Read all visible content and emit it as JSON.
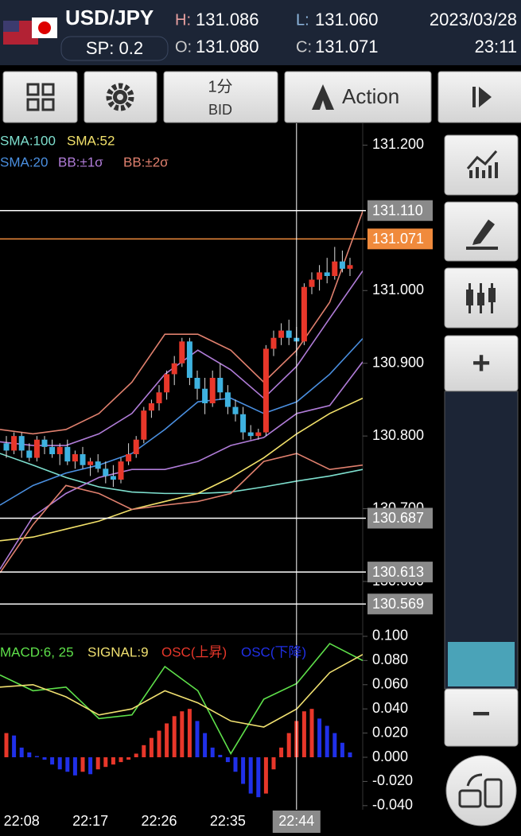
{
  "header": {
    "pair": "USD/JPY",
    "spread": "SP: 0.2",
    "high_label": "H:",
    "high": "131.086",
    "low_label": "L:",
    "low": "131.060",
    "open_label": "O:",
    "open": "131.080",
    "close_label": "C:",
    "close": "131.071",
    "date": "2023/03/28",
    "time": "23:11"
  },
  "toolbar": {
    "timeframe": "1分",
    "price_type": "BID",
    "action": "Action"
  },
  "sidebar": {
    "zoom_in": "+",
    "zoom_out": "−"
  },
  "chart_data": [
    {
      "type": "candlestick",
      "ylim": [
        130.53,
        131.23
      ],
      "yticks": [
        {
          "value": 131.2,
          "label": "131.200"
        },
        {
          "value": 131.0,
          "label": "131.000"
        },
        {
          "value": 130.9,
          "label": "130.900"
        },
        {
          "value": 130.8,
          "label": "130.800"
        },
        {
          "value": 130.7,
          "label": "130.700"
        },
        {
          "value": 130.6,
          "label": "130.600"
        }
      ],
      "x_labels": [
        "22:08",
        "22:17",
        "22:26",
        "22:35",
        "22:44"
      ],
      "up_color": "#e8372a",
      "down_color": "#3eb2e0",
      "candles": [
        [
          130.79,
          130.8,
          130.77,
          130.78
        ],
        [
          130.78,
          130.805,
          130.775,
          130.8
        ],
        [
          130.8,
          130.805,
          130.77,
          130.78
        ],
        [
          130.78,
          130.79,
          130.765,
          130.77
        ],
        [
          130.77,
          130.8,
          130.765,
          130.795
        ],
        [
          130.795,
          130.8,
          130.775,
          130.785
        ],
        [
          130.785,
          130.795,
          130.77,
          130.775
        ],
        [
          130.775,
          130.79,
          130.76,
          130.785
        ],
        [
          130.785,
          130.795,
          130.76,
          130.765
        ],
        [
          130.765,
          130.78,
          130.755,
          130.775
        ],
        [
          130.775,
          130.785,
          130.755,
          130.76
        ],
        [
          130.76,
          130.77,
          130.745,
          130.765
        ],
        [
          130.765,
          130.775,
          130.75,
          130.755
        ],
        [
          130.755,
          130.765,
          130.735,
          130.745
        ],
        [
          130.745,
          130.76,
          130.73,
          130.74
        ],
        [
          130.74,
          130.77,
          130.735,
          130.765
        ],
        [
          130.765,
          130.79,
          130.76,
          130.775
        ],
        [
          130.775,
          130.8,
          130.77,
          130.795
        ],
        [
          130.795,
          130.84,
          130.79,
          130.835
        ],
        [
          130.835,
          130.85,
          130.825,
          130.845
        ],
        [
          130.845,
          130.87,
          130.835,
          130.86
        ],
        [
          130.86,
          130.89,
          130.85,
          130.885
        ],
        [
          130.885,
          130.91,
          130.87,
          130.9
        ],
        [
          130.9,
          130.935,
          130.895,
          130.93
        ],
        [
          130.93,
          130.935,
          130.87,
          130.88
        ],
        [
          130.88,
          130.89,
          130.85,
          130.865
        ],
        [
          130.865,
          130.88,
          130.83,
          130.845
        ],
        [
          130.845,
          130.89,
          130.84,
          130.88
        ],
        [
          130.88,
          130.9,
          130.85,
          130.86
        ],
        [
          130.86,
          130.87,
          130.83,
          130.84
        ],
        [
          130.84,
          130.85,
          130.82,
          130.83
        ],
        [
          130.83,
          130.84,
          130.795,
          130.805
        ],
        [
          130.805,
          130.815,
          130.795,
          130.8
        ],
        [
          130.8,
          130.81,
          130.795,
          130.805
        ],
        [
          130.805,
          130.925,
          130.8,
          130.92
        ],
        [
          130.92,
          130.945,
          130.91,
          130.935
        ],
        [
          130.935,
          130.955,
          130.925,
          130.945
        ],
        [
          130.945,
          130.96,
          130.925,
          130.935
        ],
        [
          130.935,
          130.95,
          130.91,
          130.93
        ],
        [
          130.93,
          131.01,
          130.925,
          131.005
        ],
        [
          131.005,
          131.025,
          130.995,
          131.015
        ],
        [
          131.015,
          131.035,
          131.0,
          131.025
        ],
        [
          131.025,
          131.045,
          131.01,
          131.02
        ],
        [
          131.02,
          131.06,
          131.015,
          131.04
        ],
        [
          131.04,
          131.055,
          131.025,
          131.03
        ],
        [
          131.03,
          131.045,
          131.02,
          131.035
        ]
      ],
      "indicators": [
        {
          "name": "SMA:100",
          "color": "#7ee0cf",
          "values": [
            130.776,
            130.76,
            130.743,
            130.73,
            130.723,
            130.721,
            130.721,
            130.723,
            130.73,
            130.738,
            130.745,
            130.754
          ]
        },
        {
          "name": "SMA:52",
          "color": "#f2e16a",
          "values": [
            130.656,
            130.661,
            130.672,
            130.683,
            130.699,
            130.71,
            130.721,
            130.743,
            130.77,
            130.803,
            130.831,
            130.852
          ]
        },
        {
          "name": "SMA:20",
          "color": "#4a8fe0",
          "values": [
            130.705,
            130.732,
            130.749,
            130.76,
            130.776,
            130.809,
            130.847,
            130.852,
            130.831,
            130.847,
            130.885,
            130.934
          ]
        },
        {
          "name": "BB:±1σ",
          "color": "#b07cd8",
          "values": [
            130.792,
            130.787,
            130.787,
            130.803,
            130.831,
            130.885,
            130.918,
            130.891,
            130.852,
            130.896,
            130.962,
            131.027
          ],
          "lower": [
            130.617,
            130.689,
            130.721,
            130.743,
            130.754,
            130.754,
            130.765,
            130.787,
            130.798,
            130.831,
            130.842,
            130.902
          ]
        },
        {
          "name": "BB:±2σ",
          "color": "#e0806e",
          "values": [
            130.809,
            130.803,
            130.809,
            130.831,
            130.874,
            130.94,
            130.94,
            130.918,
            130.874,
            130.918,
            130.984,
            131.109
          ],
          "lower": [
            130.612,
            130.678,
            130.732,
            130.721,
            130.699,
            130.705,
            130.71,
            130.721,
            130.765,
            130.776,
            130.754,
            130.76
          ]
        }
      ],
      "levels": [
        {
          "value": 131.11,
          "label": "131.110",
          "color": "#ffffff"
        },
        {
          "value": 131.071,
          "label": "131.071",
          "color": "#f08a3c"
        },
        {
          "value": 130.687,
          "label": "130.687",
          "color": "#ffffff"
        },
        {
          "value": 130.613,
          "label": "130.613",
          "color": "#ffffff"
        },
        {
          "value": 130.569,
          "label": "130.569",
          "color": "#ffffff"
        }
      ]
    },
    {
      "type": "macd",
      "ylim": [
        -0.0434,
        0.1013
      ],
      "yticks": [
        {
          "value": 0.1,
          "label": "0.100"
        },
        {
          "value": 0.08,
          "label": "0.080"
        },
        {
          "value": 0.06,
          "label": "0.060"
        },
        {
          "value": 0.04,
          "label": "0.040"
        },
        {
          "value": 0.02,
          "label": "0.020"
        },
        {
          "value": 0,
          "label": "0.000"
        },
        {
          "value": -0.02,
          "label": "-0.020"
        },
        {
          "value": -0.04,
          "label": "-0.040"
        }
      ],
      "series": [
        {
          "name": "MACD:6, 25",
          "color": "#5ee04a",
          "values": [
            0.068,
            0.055,
            0.058,
            0.032,
            0.035,
            0.075,
            0.055,
            0.003,
            0.048,
            0.061,
            0.094,
            0.08
          ]
        },
        {
          "name": "SIGNAL:9",
          "color": "#f0e070",
          "values": [
            0.058,
            0.06,
            0.05,
            0.035,
            0.04,
            0.055,
            0.045,
            0.03,
            0.025,
            0.04,
            0.07,
            0.085
          ]
        }
      ],
      "osc": {
        "rise_name": "OSC(上昇)",
        "rise_color": "#e8372a",
        "fall_name": "OSC(下降)",
        "fall_color": "#2030e8",
        "values": [
          0.02,
          0.018,
          0.008,
          0.004,
          0.001,
          -0.002,
          -0.006,
          -0.01,
          -0.012,
          -0.015,
          -0.012,
          -0.014,
          -0.01,
          -0.008,
          -0.006,
          -0.004,
          -0.002,
          0.003,
          0.01,
          0.016,
          0.022,
          0.028,
          0.034,
          0.038,
          0.04,
          0.03,
          0.02,
          0.008,
          0.002,
          -0.004,
          -0.012,
          -0.022,
          -0.03,
          -0.033,
          -0.03,
          -0.01,
          0.008,
          0.02,
          0.03,
          0.038,
          0.04,
          0.032,
          0.026,
          0.02,
          0.012,
          0.004
        ]
      }
    }
  ]
}
